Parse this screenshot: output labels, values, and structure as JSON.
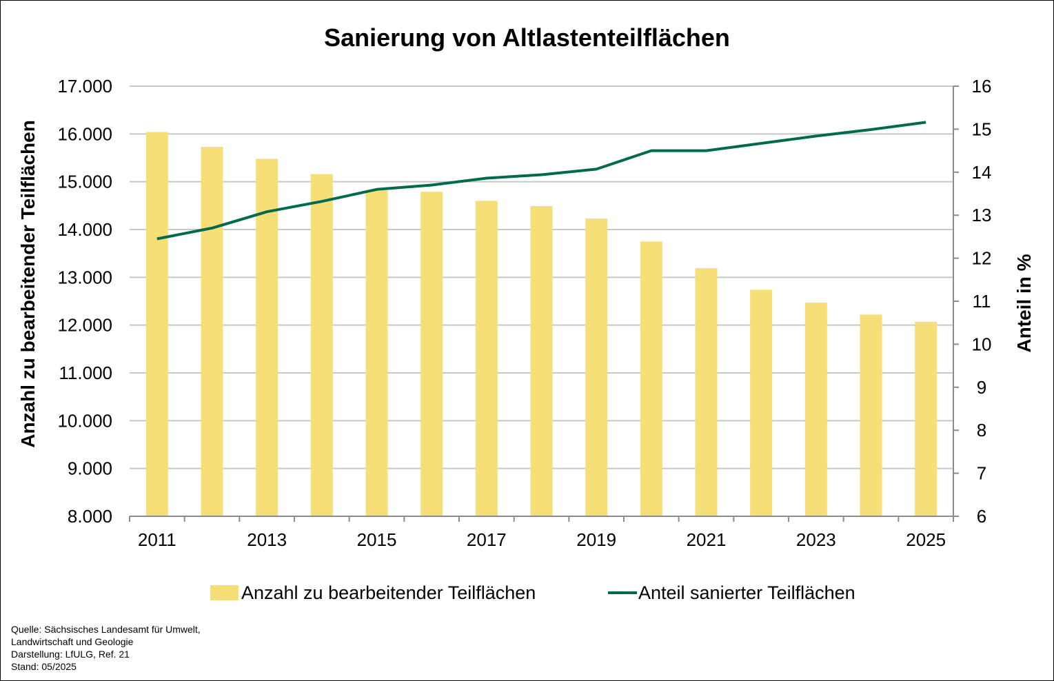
{
  "chart_data": {
    "type": "bar",
    "title": "Sanierung von Altlastenteilflächen",
    "x": [
      2011,
      2012,
      2013,
      2014,
      2015,
      2016,
      2017,
      2018,
      2019,
      2020,
      2021,
      2022,
      2023,
      2024,
      2025
    ],
    "x_tick_labels": [
      "2011",
      "2013",
      "2015",
      "2017",
      "2019",
      "2021",
      "2023",
      "2025"
    ],
    "series": [
      {
        "name": "Anzahl zu bearbeitender Teilflächen",
        "type": "bar",
        "axis": "left",
        "color": "#F7DF78",
        "values": [
          16040,
          15730,
          15480,
          15160,
          14820,
          14790,
          14600,
          14490,
          14230,
          13750,
          13190,
          12740,
          12470,
          12220,
          12070
        ]
      },
      {
        "name": "Anteil sanierter Teilflächen",
        "type": "line",
        "axis": "right",
        "color": "#006A4E",
        "values": [
          12.45,
          12.7,
          13.08,
          13.32,
          13.6,
          13.7,
          13.86,
          13.94,
          14.07,
          14.5,
          14.5,
          14.67,
          14.84,
          14.99,
          15.16
        ]
      }
    ],
    "ylabel": "Anzahl zu bearbeitender Teilflächen",
    "y2label": "Anteil in %",
    "ylim": [
      8000,
      17000
    ],
    "y2lim": [
      6,
      16
    ],
    "y_tick_labels": [
      "8.000",
      "9.000",
      "10.000",
      "11.000",
      "12.000",
      "13.000",
      "14.000",
      "15.000",
      "16.000",
      "17.000"
    ],
    "y_tick_values": [
      8000,
      9000,
      10000,
      11000,
      12000,
      13000,
      14000,
      15000,
      16000,
      17000
    ],
    "y2_tick_values": [
      6,
      7,
      8,
      9,
      10,
      11,
      12,
      13,
      14,
      15,
      16
    ],
    "grid": true,
    "gridline_color": "#C8C8C8",
    "legend_position": "bottom"
  },
  "source_note": [
    "Quelle: Sächsisches Landesamt für Umwelt,",
    "Landwirtschaft und Geologie",
    "Darstellung: LfULG, Ref. 21",
    "Stand: 05/2025"
  ]
}
